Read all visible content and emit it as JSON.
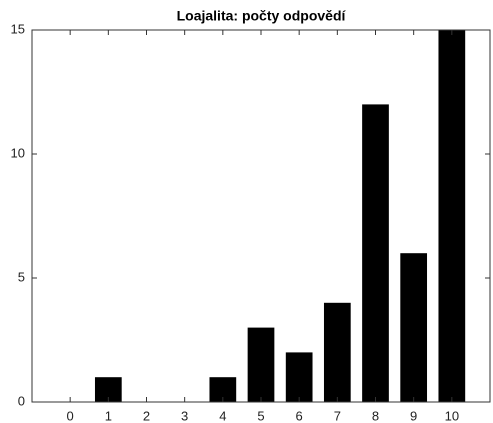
{
  "chart_data": {
    "type": "bar",
    "title": "Loajalita: počty odpovědí",
    "x": [
      0,
      1,
      2,
      3,
      4,
      5,
      6,
      7,
      8,
      9,
      10
    ],
    "values": [
      0,
      1,
      0,
      0,
      1,
      3,
      2,
      4,
      12,
      6,
      15
    ],
    "color": "#000000",
    "xlim": [
      -1,
      11
    ],
    "xticks": [
      0,
      1,
      2,
      3,
      4,
      5,
      6,
      7,
      8,
      9,
      10
    ],
    "ylim": [
      0,
      15
    ],
    "yticks": [
      0,
      5,
      10,
      15
    ],
    "grid": false
  }
}
